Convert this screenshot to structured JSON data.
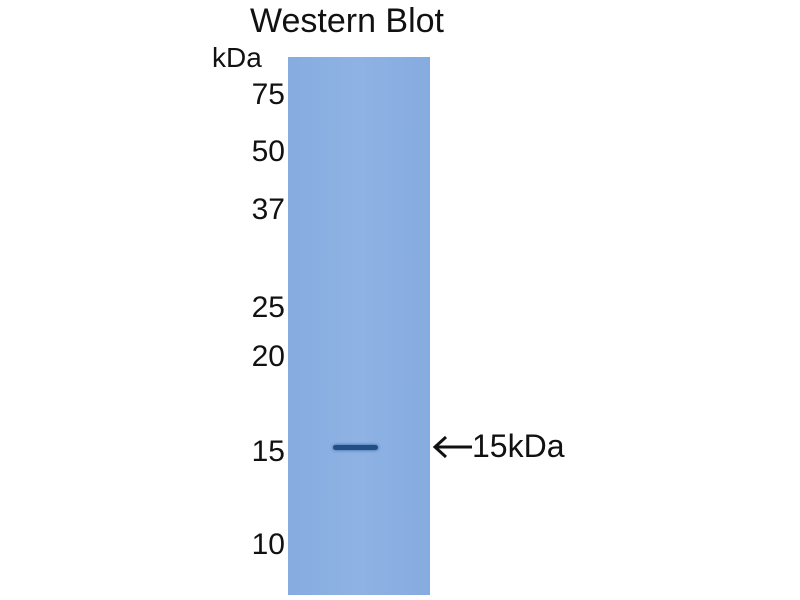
{
  "title": "Western Blot",
  "unit_label": "kDa",
  "markers": [
    "75",
    "50",
    "37",
    "25",
    "20",
    "15",
    "10"
  ],
  "annotation": "15kDa",
  "colors": {
    "lane": "#8eb2e3",
    "band": "#1f4f86"
  }
}
